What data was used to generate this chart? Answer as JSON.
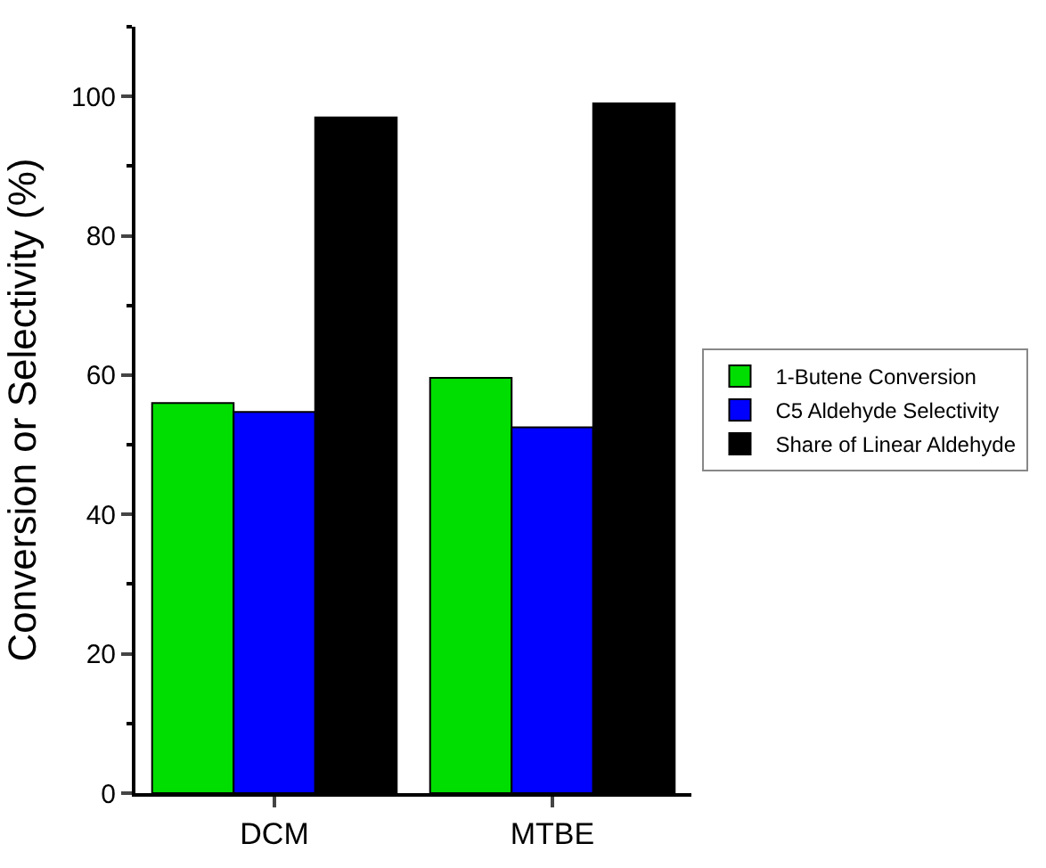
{
  "chart_data": {
    "type": "bar",
    "ylabel": "Conversion or Selectivity (%)",
    "categories": [
      "DCM",
      "MTBE"
    ],
    "series": [
      {
        "name": "1-Butene Conversion",
        "color": "#00dd00",
        "values": [
          56.0,
          59.6
        ]
      },
      {
        "name": "C5 Aldehyde Selectivity",
        "color": "#0000ff",
        "values": [
          54.7,
          52.5
        ]
      },
      {
        "name": "Share of Linear Aldehyde",
        "color": "#000000",
        "values": [
          97.0,
          99.0
        ]
      }
    ],
    "ylim": [
      0,
      110
    ],
    "yticks": [
      0,
      20,
      40,
      60,
      80,
      100
    ],
    "legend": "right"
  }
}
